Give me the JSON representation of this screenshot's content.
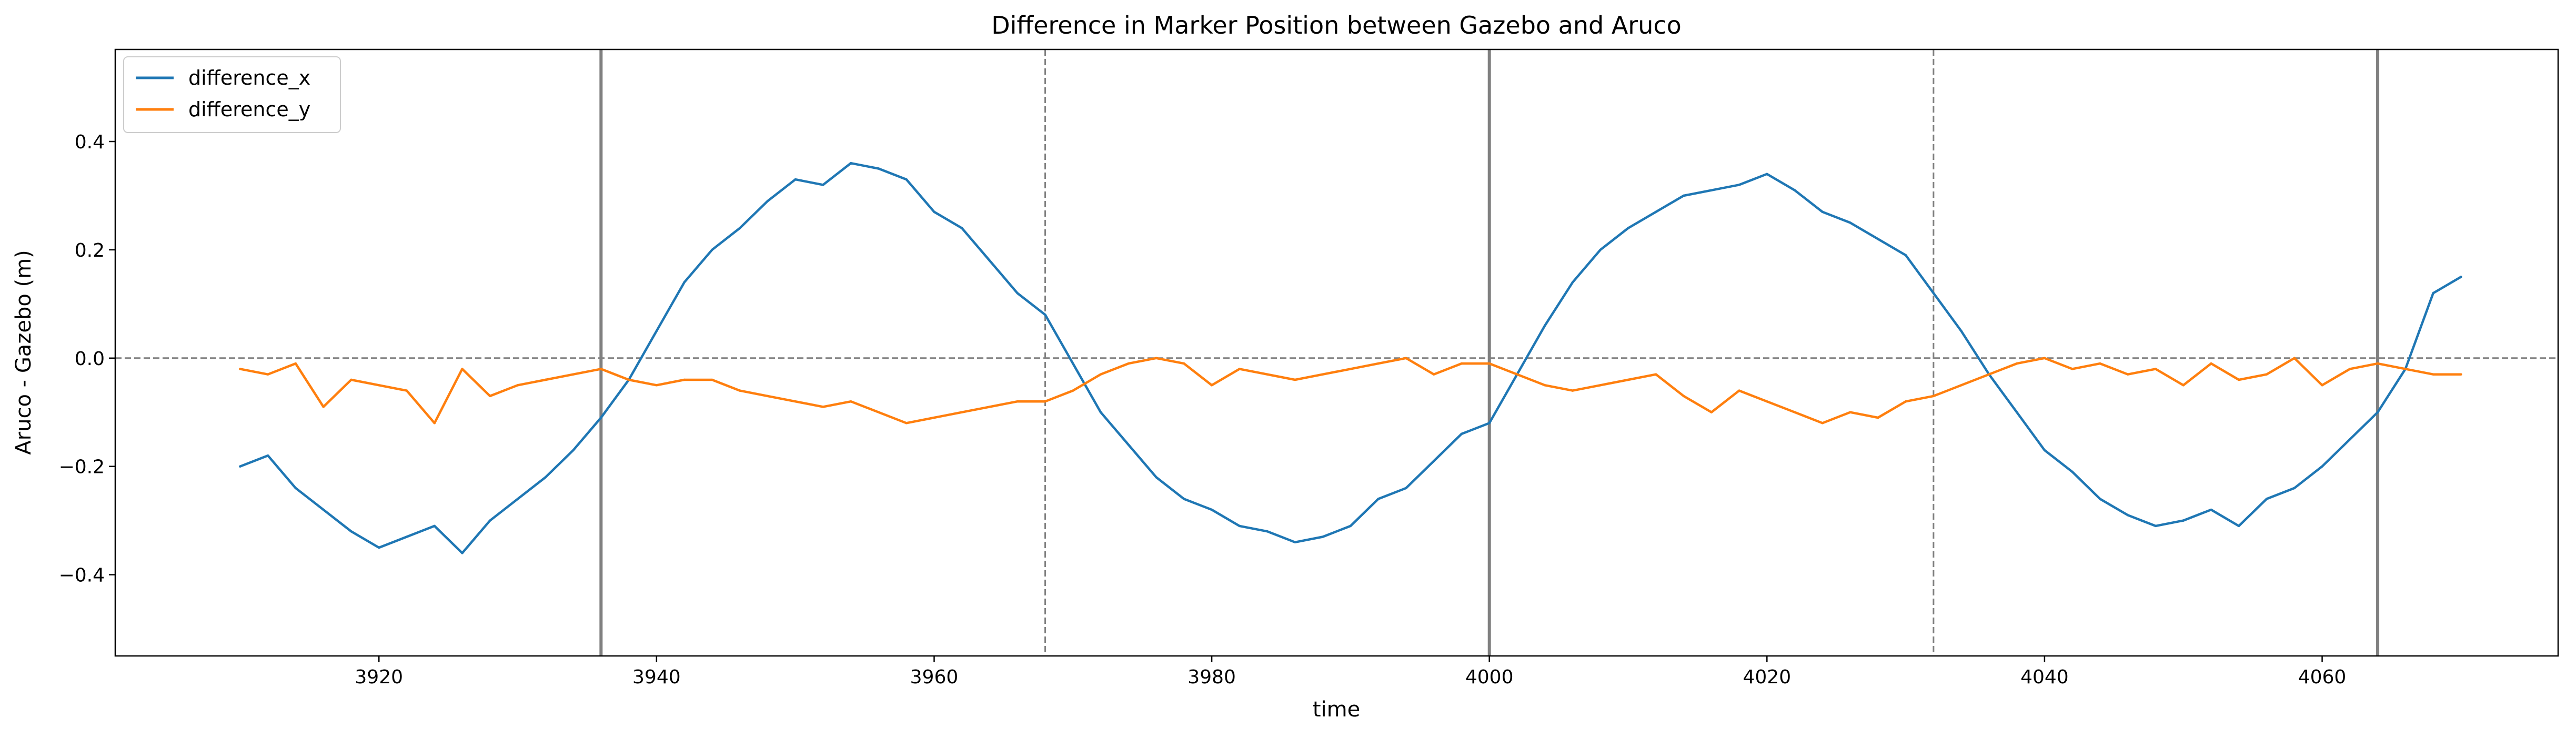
{
  "chart_data": {
    "type": "line",
    "title": "Difference in Marker Position between Gazebo and Aruco",
    "xlabel": "time",
    "ylabel": "Aruco - Gazebo (m)",
    "xlim": [
      3901,
      4077
    ],
    "ylim": [
      -0.55,
      0.57
    ],
    "x_ticks": [
      3920,
      3940,
      3960,
      3980,
      4000,
      4020,
      4040,
      4060
    ],
    "x_tick_labels": [
      "3920",
      "3940",
      "3960",
      "3980",
      "4000",
      "4020",
      "4040",
      "4060"
    ],
    "y_ticks": [
      -0.4,
      -0.2,
      0.0,
      0.2,
      0.4
    ],
    "y_tick_labels": [
      "−0.4",
      "−0.2",
      "0.0",
      "0.2",
      "0.4"
    ],
    "grid": false,
    "legend_position": "top-left",
    "reference_lines": {
      "horizontal_dashed_y": 0.0,
      "vertical_solid_x": [
        3936,
        4000,
        4064
      ],
      "vertical_dashed_x": [
        3968,
        4032
      ]
    },
    "series": [
      {
        "name": "difference_x",
        "color": "#1f77b4",
        "x": [
          3910,
          3912,
          3914,
          3916,
          3918,
          3920,
          3922,
          3924,
          3926,
          3928,
          3930,
          3932,
          3934,
          3936,
          3938,
          3940,
          3942,
          3944,
          3946,
          3948,
          3950,
          3952,
          3954,
          3956,
          3958,
          3960,
          3962,
          3964,
          3966,
          3968,
          3970,
          3972,
          3974,
          3976,
          3978,
          3980,
          3982,
          3984,
          3986,
          3988,
          3990,
          3992,
          3994,
          3996,
          3998,
          4000,
          4002,
          4004,
          4006,
          4008,
          4010,
          4012,
          4014,
          4016,
          4018,
          4020,
          4022,
          4024,
          4026,
          4028,
          4030,
          4032,
          4034,
          4036,
          4038,
          4040,
          4042,
          4044,
          4046,
          4048,
          4050,
          4052,
          4054,
          4056,
          4058,
          4060,
          4062,
          4064,
          4066,
          4068,
          4070
        ],
        "values": [
          -0.2,
          -0.18,
          -0.24,
          -0.28,
          -0.32,
          -0.35,
          -0.33,
          -0.31,
          -0.36,
          -0.3,
          -0.26,
          -0.22,
          -0.17,
          -0.11,
          -0.04,
          0.05,
          0.14,
          0.2,
          0.24,
          0.29,
          0.33,
          0.32,
          0.36,
          0.35,
          0.33,
          0.27,
          0.24,
          0.18,
          0.12,
          0.08,
          -0.01,
          -0.1,
          -0.16,
          -0.22,
          -0.26,
          -0.28,
          -0.31,
          -0.32,
          -0.34,
          -0.33,
          -0.31,
          -0.26,
          -0.24,
          -0.19,
          -0.14,
          -0.12,
          -0.03,
          0.06,
          0.14,
          0.2,
          0.24,
          0.27,
          0.3,
          0.31,
          0.32,
          0.34,
          0.31,
          0.27,
          0.25,
          0.22,
          0.19,
          0.12,
          0.05,
          -0.03,
          -0.1,
          -0.17,
          -0.21,
          -0.26,
          -0.29,
          -0.31,
          -0.3,
          -0.28,
          -0.31,
          -0.26,
          -0.24,
          -0.2,
          -0.15,
          -0.1,
          -0.02,
          0.12,
          0.15
        ]
      },
      {
        "name": "difference_y",
        "color": "#ff7f0e",
        "x": [
          3910,
          3912,
          3914,
          3916,
          3918,
          3920,
          3922,
          3924,
          3926,
          3928,
          3930,
          3932,
          3934,
          3936,
          3938,
          3940,
          3942,
          3944,
          3946,
          3948,
          3950,
          3952,
          3954,
          3956,
          3958,
          3960,
          3962,
          3964,
          3966,
          3968,
          3970,
          3972,
          3974,
          3976,
          3978,
          3980,
          3982,
          3984,
          3986,
          3988,
          3990,
          3992,
          3994,
          3996,
          3998,
          4000,
          4002,
          4004,
          4006,
          4008,
          4010,
          4012,
          4014,
          4016,
          4018,
          4020,
          4022,
          4024,
          4026,
          4028,
          4030,
          4032,
          4034,
          4036,
          4038,
          4040,
          4042,
          4044,
          4046,
          4048,
          4050,
          4052,
          4054,
          4056,
          4058,
          4060,
          4062,
          4064,
          4066,
          4068,
          4070
        ],
        "values": [
          -0.02,
          -0.03,
          -0.01,
          -0.09,
          -0.04,
          -0.05,
          -0.06,
          -0.12,
          -0.02,
          -0.07,
          -0.05,
          -0.04,
          -0.03,
          -0.02,
          -0.04,
          -0.05,
          -0.04,
          -0.04,
          -0.06,
          -0.07,
          -0.08,
          -0.09,
          -0.08,
          -0.1,
          -0.12,
          -0.11,
          -0.1,
          -0.09,
          -0.08,
          -0.08,
          -0.06,
          -0.03,
          -0.01,
          0.0,
          -0.01,
          -0.05,
          -0.02,
          -0.03,
          -0.04,
          -0.03,
          -0.02,
          -0.01,
          0.0,
          -0.03,
          -0.01,
          -0.01,
          -0.03,
          -0.05,
          -0.06,
          -0.05,
          -0.04,
          -0.03,
          -0.07,
          -0.1,
          -0.06,
          -0.08,
          -0.1,
          -0.12,
          -0.1,
          -0.11,
          -0.08,
          -0.07,
          -0.05,
          -0.03,
          -0.01,
          0.0,
          -0.02,
          -0.01,
          -0.03,
          -0.02,
          -0.05,
          -0.01,
          -0.04,
          -0.03,
          0.0,
          -0.05,
          -0.02,
          -0.01,
          -0.02,
          -0.03,
          -0.03
        ]
      }
    ]
  }
}
